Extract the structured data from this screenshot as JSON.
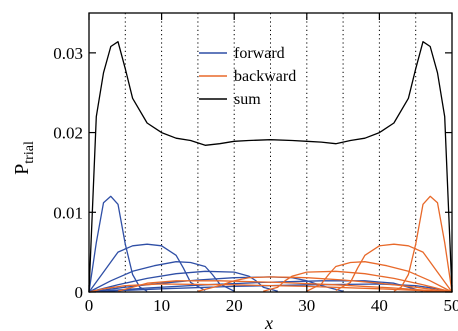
{
  "chart_data": {
    "type": "line",
    "xlabel": "x",
    "ylabel": "P",
    "ylabel_subscript": "trial",
    "xlim": [
      0,
      50
    ],
    "ylim": [
      0,
      0.035
    ],
    "xticks": [
      0,
      10,
      20,
      30,
      40,
      50
    ],
    "xtick_labels": [
      "0",
      "10",
      "20",
      "30",
      "40",
      "50"
    ],
    "yticks": [
      0,
      0.01,
      0.02,
      0.03
    ],
    "ytick_labels": [
      "0",
      "0.01",
      "0.02",
      "0.03"
    ],
    "vertical_dotted_lines": [
      5,
      10,
      15,
      20,
      25,
      30,
      35,
      40,
      45
    ],
    "legend": {
      "position": "top-center",
      "entries": [
        {
          "label": "forward",
          "color": "#2f4fa6"
        },
        {
          "label": "backward",
          "color": "#e8692a"
        },
        {
          "label": "sum",
          "color": "#000000"
        }
      ]
    },
    "series": [
      {
        "group": "sum",
        "color": "#000000",
        "x": [
          0,
          1,
          2,
          3,
          4,
          5,
          6,
          8,
          10,
          12,
          14,
          16,
          18,
          20,
          22,
          25,
          28,
          30,
          32,
          34,
          36,
          38,
          40,
          42,
          44,
          45,
          46,
          47,
          48,
          49,
          50
        ],
        "y": [
          0,
          0.022,
          0.0275,
          0.0308,
          0.0314,
          0.028,
          0.0243,
          0.0212,
          0.02,
          0.0193,
          0.019,
          0.0184,
          0.0186,
          0.0189,
          0.019,
          0.0191,
          0.019,
          0.0189,
          0.0188,
          0.0186,
          0.019,
          0.0193,
          0.02,
          0.0212,
          0.0243,
          0.028,
          0.0314,
          0.0308,
          0.0275,
          0.022,
          0
        ]
      },
      {
        "group": "forward",
        "color": "#2f4fa6",
        "x": [
          0,
          1,
          2,
          3,
          4,
          5,
          6,
          7,
          8
        ],
        "y": [
          0,
          0.0062,
          0.0112,
          0.012,
          0.011,
          0.006,
          0.0022,
          0.0006,
          0.0001
        ]
      },
      {
        "group": "forward",
        "color": "#2f4fa6",
        "x": [
          0,
          2,
          4,
          6,
          8,
          10,
          12,
          13,
          14,
          16
        ],
        "y": [
          0,
          0.0025,
          0.005,
          0.0058,
          0.006,
          0.0058,
          0.0046,
          0.003,
          0.0012,
          0.0002
        ]
      },
      {
        "group": "forward",
        "color": "#2f4fa6",
        "x": [
          0,
          3,
          6,
          9,
          12,
          14,
          16,
          17,
          18,
          20
        ],
        "y": [
          0,
          0.0014,
          0.0026,
          0.0033,
          0.0038,
          0.0037,
          0.0032,
          0.0022,
          0.001,
          0.0001
        ]
      },
      {
        "group": "forward",
        "color": "#2f4fa6",
        "x": [
          0,
          4,
          8,
          12,
          16,
          20,
          22,
          23,
          24,
          26
        ],
        "y": [
          0,
          0.0009,
          0.0017,
          0.0023,
          0.0026,
          0.0025,
          0.002,
          0.0014,
          0.0006,
          0.0001
        ]
      },
      {
        "group": "forward",
        "color": "#2f4fa6",
        "x": [
          0,
          5,
          10,
          15,
          20,
          25,
          28,
          30,
          32,
          35
        ],
        "y": [
          0,
          0.0006,
          0.0011,
          0.0015,
          0.0018,
          0.0019,
          0.0018,
          0.0014,
          0.0008,
          0.0001
        ]
      },
      {
        "group": "forward",
        "color": "#2f4fa6",
        "x": [
          0,
          8,
          16,
          24,
          32,
          38,
          42,
          44,
          46
        ],
        "y": [
          0,
          0.0005,
          0.0009,
          0.0012,
          0.0014,
          0.0014,
          0.0011,
          0.0006,
          0.0001
        ]
      },
      {
        "group": "forward",
        "color": "#2f4fa6",
        "x": [
          0,
          10,
          20,
          30,
          40,
          45,
          48,
          50
        ],
        "y": [
          0,
          0.0004,
          0.0007,
          0.0009,
          0.001,
          0.0008,
          0.0004,
          0
        ]
      },
      {
        "group": "backward",
        "color": "#e8692a",
        "x": [
          42,
          43,
          44,
          45,
          46,
          47,
          48,
          49,
          50
        ],
        "y": [
          0.0001,
          0.0006,
          0.0022,
          0.006,
          0.011,
          0.012,
          0.0112,
          0.0062,
          0
        ]
      },
      {
        "group": "backward",
        "color": "#e8692a",
        "x": [
          34,
          36,
          37,
          38,
          40,
          42,
          44,
          46,
          48,
          50
        ],
        "y": [
          0.0002,
          0.0012,
          0.003,
          0.0046,
          0.0058,
          0.006,
          0.0058,
          0.005,
          0.0025,
          0
        ]
      },
      {
        "group": "backward",
        "color": "#e8692a",
        "x": [
          30,
          32,
          33,
          34,
          36,
          38,
          41,
          44,
          47,
          50
        ],
        "y": [
          0.0001,
          0.001,
          0.0022,
          0.0032,
          0.0037,
          0.0038,
          0.0033,
          0.0026,
          0.0014,
          0
        ]
      },
      {
        "group": "backward",
        "color": "#e8692a",
        "x": [
          24,
          26,
          27,
          28,
          30,
          34,
          38,
          42,
          46,
          50
        ],
        "y": [
          0.0001,
          0.0006,
          0.0014,
          0.002,
          0.0025,
          0.0026,
          0.0023,
          0.0017,
          0.0009,
          0
        ]
      },
      {
        "group": "backward",
        "color": "#e8692a",
        "x": [
          15,
          18,
          20,
          22,
          25,
          30,
          35,
          40,
          45,
          50
        ],
        "y": [
          0.0001,
          0.0008,
          0.0014,
          0.0018,
          0.0019,
          0.0018,
          0.0015,
          0.0011,
          0.0006,
          0
        ]
      },
      {
        "group": "backward",
        "color": "#e8692a",
        "x": [
          4,
          6,
          8,
          12,
          18,
          26,
          34,
          42,
          50
        ],
        "y": [
          0.0001,
          0.0006,
          0.0011,
          0.0014,
          0.0014,
          0.0012,
          0.0009,
          0.0005,
          0
        ]
      },
      {
        "group": "backward",
        "color": "#e8692a",
        "x": [
          0,
          2,
          5,
          10,
          20,
          30,
          40,
          50
        ],
        "y": [
          0,
          0.0004,
          0.0008,
          0.001,
          0.0009,
          0.0007,
          0.0004,
          0
        ]
      }
    ]
  }
}
